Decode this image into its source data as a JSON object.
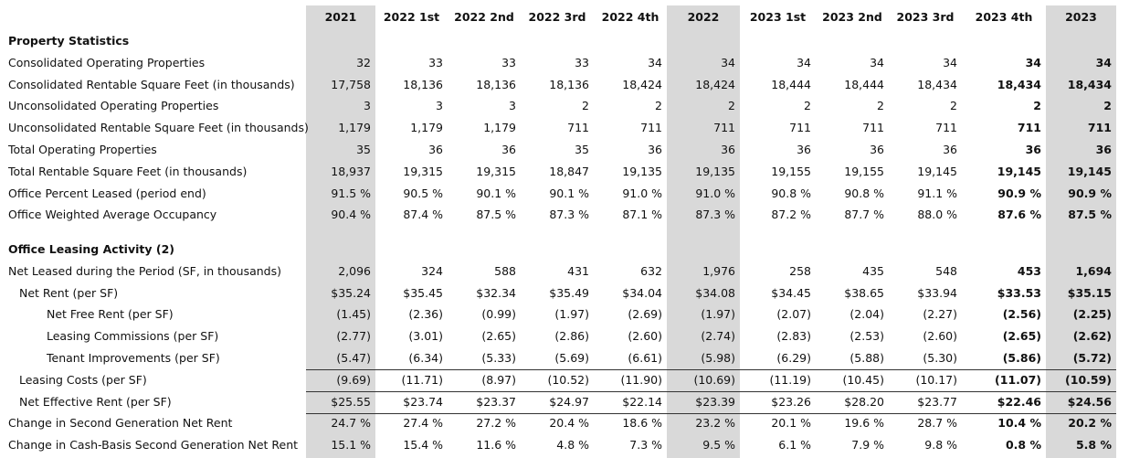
{
  "header": {
    "columns": [
      "2021",
      "2022 1st",
      "2022 2nd",
      "2022 3rd",
      "2022 4th",
      "2022",
      "2023 1st",
      "2023 2nd",
      "2023 3rd",
      "2023 4th",
      "2023"
    ]
  },
  "sections": [
    {
      "title": "Property Statistics",
      "rows": [
        {
          "label": "Consolidated Operating Properties",
          "values": [
            "32",
            "33",
            "33",
            "33",
            "34",
            "34",
            "34",
            "34",
            "34",
            "34",
            "34"
          ]
        },
        {
          "label": "Consolidated Rentable Square Feet (in thousands)",
          "values": [
            "17,758",
            "18,136",
            "18,136",
            "18,136",
            "18,424",
            "18,424",
            "18,444",
            "18,444",
            "18,434",
            "18,434",
            "18,434"
          ]
        },
        {
          "label": "Unconsolidated Operating Properties",
          "values": [
            "3",
            "3",
            "3",
            "2",
            "2",
            "2",
            "2",
            "2",
            "2",
            "2",
            "2"
          ]
        },
        {
          "label": "Unconsolidated Rentable Square Feet (in thousands)",
          "values": [
            "1,179",
            "1,179",
            "1,179",
            "711",
            "711",
            "711",
            "711",
            "711",
            "711",
            "711",
            "711"
          ]
        },
        {
          "label": "Total Operating Properties",
          "values": [
            "35",
            "36",
            "36",
            "35",
            "36",
            "36",
            "36",
            "36",
            "36",
            "36",
            "36"
          ]
        },
        {
          "label": "Total Rentable Square Feet (in thousands)",
          "values": [
            "18,937",
            "19,315",
            "19,315",
            "18,847",
            "19,135",
            "19,135",
            "19,155",
            "19,155",
            "19,145",
            "19,145",
            "19,145"
          ]
        },
        {
          "label": "Office Percent Leased (period end)",
          "values": [
            "91.5 %",
            "90.5 %",
            "90.1 %",
            "90.1 %",
            "91.0 %",
            "91.0 %",
            "90.8 %",
            "90.8 %",
            "91.1 %",
            "90.9 %",
            "90.9 %"
          ]
        },
        {
          "label": "Office Weighted Average Occupancy",
          "values": [
            "90.4 %",
            "87.4 %",
            "87.5 %",
            "87.3 %",
            "87.1 %",
            "87.3 %",
            "87.2 %",
            "87.7 %",
            "88.0 %",
            "87.6 %",
            "87.5 %"
          ]
        }
      ]
    },
    {
      "title": "Office Leasing Activity (2)",
      "rows": [
        {
          "label": "Net Leased during the Period (SF, in thousands)",
          "values": [
            "2,096",
            "324",
            "588",
            "431",
            "632",
            "1,976",
            "258",
            "435",
            "548",
            "453",
            "1,694"
          ]
        },
        {
          "label": "Net Rent (per SF)",
          "values": [
            "$35.24",
            "$35.45",
            "$32.34",
            "$35.49",
            "$34.04",
            "$34.08",
            "$34.45",
            "$38.65",
            "$33.94",
            "$33.53",
            "$35.15"
          ]
        },
        {
          "label": "Net Free Rent (per SF)",
          "values": [
            "(1.45)",
            "(2.36)",
            "(0.99)",
            "(1.97)",
            "(2.69)",
            "(1.97)",
            "(2.07)",
            "(2.04)",
            "(2.27)",
            "(2.56)",
            "(2.25)"
          ]
        },
        {
          "label": "Leasing Commissions (per SF)",
          "values": [
            "(2.77)",
            "(3.01)",
            "(2.65)",
            "(2.86)",
            "(2.60)",
            "(2.74)",
            "(2.83)",
            "(2.53)",
            "(2.60)",
            "(2.65)",
            "(2.62)"
          ]
        },
        {
          "label": "Tenant Improvements (per SF)",
          "values": [
            "(5.47)",
            "(6.34)",
            "(5.33)",
            "(5.69)",
            "(6.61)",
            "(5.98)",
            "(6.29)",
            "(5.88)",
            "(5.30)",
            "(5.86)",
            "(5.72)"
          ]
        },
        {
          "label": "Leasing Costs (per SF)",
          "values": [
            "(9.69)",
            "(11.71)",
            "(8.97)",
            "(10.52)",
            "(11.90)",
            "(10.69)",
            "(11.19)",
            "(10.45)",
            "(10.17)",
            "(11.07)",
            "(10.59)"
          ]
        },
        {
          "label": "Net Effective Rent (per SF)",
          "values": [
            "$25.55",
            "$23.74",
            "$23.37",
            "$24.97",
            "$22.14",
            "$23.39",
            "$23.26",
            "$28.20",
            "$23.77",
            "$22.46",
            "$24.56"
          ]
        },
        {
          "label": "Change in Second Generation Net Rent",
          "values": [
            "24.7 %",
            "27.4 %",
            "27.2 %",
            "20.4 %",
            "18.6 %",
            "23.2 %",
            "20.1 %",
            "19.6 %",
            "28.7 %",
            "10.4 %",
            "20.2 %"
          ]
        },
        {
          "label": "Change in Cash-Basis Second Generation Net Rent",
          "values": [
            "15.1 %",
            "15.4 %",
            "11.6 %",
            "4.8 %",
            "7.3 %",
            "9.5 %",
            "6.1 %",
            "7.9 %",
            "9.8 %",
            "0.8 %",
            "5.8 %"
          ]
        }
      ]
    }
  ]
}
